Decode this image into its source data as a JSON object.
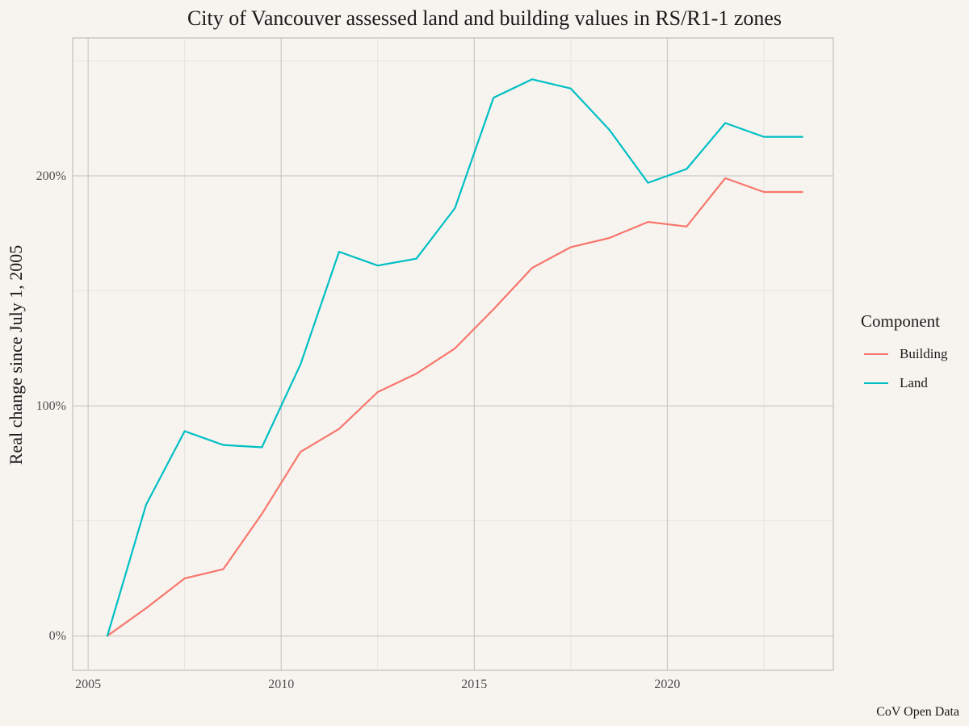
{
  "chart_data": {
    "type": "line",
    "title": "City of Vancouver assessed land and building values in RS/R1-1 zones",
    "xlabel": "",
    "ylabel": "Real change since July 1, 2005",
    "xlim": [
      2004.6,
      2024.3
    ],
    "ylim": [
      -0.15,
      2.6
    ],
    "x_ticks": [
      2005,
      2010,
      2015,
      2020
    ],
    "x_tick_labels": [
      "2005",
      "2010",
      "2015",
      "2020"
    ],
    "y_ticks": [
      0,
      1,
      2
    ],
    "y_tick_labels": [
      "0%",
      "100%",
      "200%"
    ],
    "grid": true,
    "legend_title": "Component",
    "legend_position": "right",
    "series": [
      {
        "name": "Building",
        "color": "#f8766d",
        "x": [
          2005.5,
          2006.5,
          2007.5,
          2008.5,
          2009.5,
          2010.5,
          2011.5,
          2012.5,
          2013.5,
          2014.5,
          2015.5,
          2016.5,
          2017.5,
          2018.5,
          2019.5,
          2020.5,
          2021.5,
          2022.5,
          2023.5
        ],
        "y": [
          0.0,
          0.12,
          0.25,
          0.29,
          0.53,
          0.8,
          0.9,
          1.06,
          1.14,
          1.25,
          1.42,
          1.6,
          1.69,
          1.73,
          1.8,
          1.78,
          1.99,
          1.93,
          1.93
        ]
      },
      {
        "name": "Land",
        "color": "#00bfc4",
        "x": [
          2005.5,
          2006.5,
          2007.5,
          2008.5,
          2009.5,
          2010.5,
          2011.5,
          2012.5,
          2013.5,
          2014.5,
          2015.5,
          2016.5,
          2017.5,
          2018.5,
          2019.5,
          2020.5,
          2021.5,
          2022.5,
          2023.5
        ],
        "y": [
          0.0,
          0.57,
          0.89,
          0.83,
          0.82,
          1.18,
          1.67,
          1.61,
          1.64,
          1.86,
          2.34,
          2.42,
          2.38,
          2.2,
          1.97,
          2.03,
          2.23,
          2.17,
          2.17
        ]
      }
    ],
    "caption": "CoV Open Data"
  }
}
